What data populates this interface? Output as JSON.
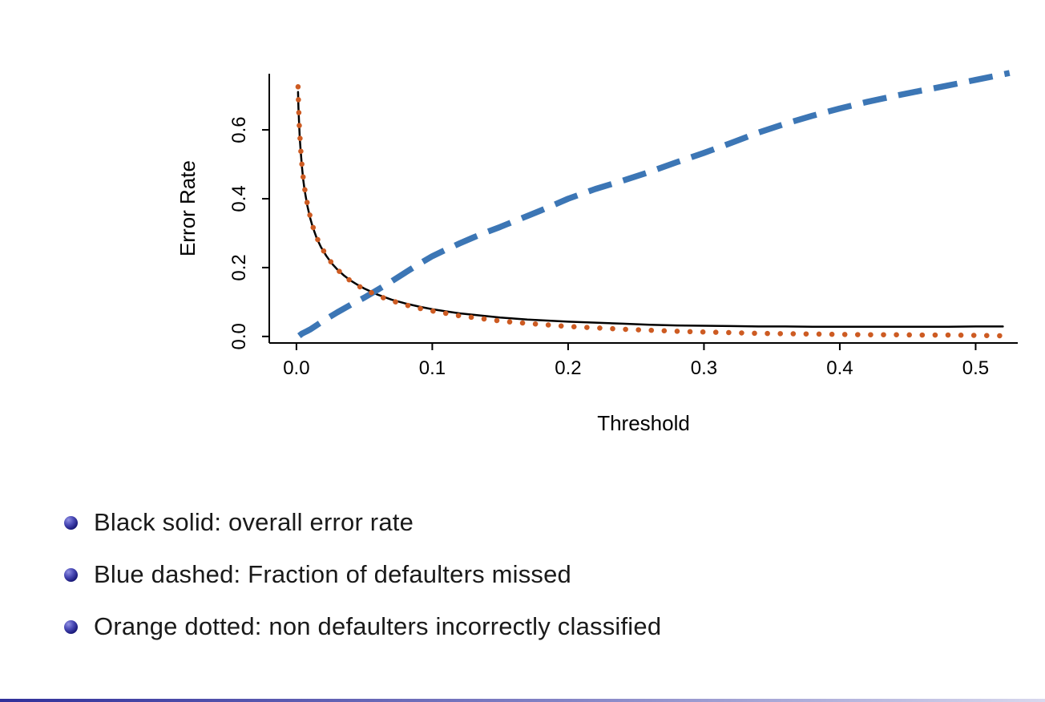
{
  "slide": {
    "background": "#ffffff"
  },
  "chart_data": {
    "type": "line",
    "title": "",
    "xlabel": "Threshold",
    "ylabel": "Error Rate",
    "xlim": [
      -0.02,
      0.531
    ],
    "ylim": [
      -0.019,
      0.763
    ],
    "grid": false,
    "legend": "none",
    "x_ticks": {
      "values": [
        0,
        0.1,
        0.2,
        0.3,
        0.4,
        0.5
      ],
      "labels": [
        "0.0",
        "0.1",
        "0.2",
        "0.3",
        "0.4",
        "0.5"
      ]
    },
    "y_ticks": {
      "values": [
        0,
        0.2,
        0.4,
        0.6
      ],
      "labels": [
        "0.0",
        "0.2",
        "0.4",
        "0.6"
      ]
    },
    "series": [
      {
        "name": "overall-error-rate",
        "label": "Black solid: overall error rate",
        "style": "solid",
        "color": "#000000",
        "width": 2.5,
        "points": [
          [
            0.0012,
            0.71
          ],
          [
            0.0015,
            0.665
          ],
          [
            0.002,
            0.615
          ],
          [
            0.0025,
            0.575
          ],
          [
            0.003,
            0.545
          ],
          [
            0.004,
            0.495
          ],
          [
            0.005,
            0.455
          ],
          [
            0.006,
            0.425
          ],
          [
            0.008,
            0.38
          ],
          [
            0.01,
            0.345
          ],
          [
            0.012,
            0.318
          ],
          [
            0.015,
            0.285
          ],
          [
            0.018,
            0.26
          ],
          [
            0.022,
            0.234
          ],
          [
            0.026,
            0.212
          ],
          [
            0.03,
            0.195
          ],
          [
            0.035,
            0.177
          ],
          [
            0.04,
            0.162
          ],
          [
            0.045,
            0.15
          ],
          [
            0.05,
            0.139
          ],
          [
            0.06,
            0.121
          ],
          [
            0.07,
            0.107
          ],
          [
            0.08,
            0.096
          ],
          [
            0.09,
            0.087
          ],
          [
            0.1,
            0.079
          ],
          [
            0.11,
            0.073
          ],
          [
            0.12,
            0.067
          ],
          [
            0.13,
            0.063
          ],
          [
            0.14,
            0.059
          ],
          [
            0.15,
            0.055
          ],
          [
            0.16,
            0.052
          ],
          [
            0.17,
            0.049
          ],
          [
            0.18,
            0.047
          ],
          [
            0.19,
            0.045
          ],
          [
            0.2,
            0.043
          ],
          [
            0.22,
            0.04
          ],
          [
            0.24,
            0.037
          ],
          [
            0.26,
            0.034
          ],
          [
            0.28,
            0.032
          ],
          [
            0.3,
            0.031
          ],
          [
            0.32,
            0.03
          ],
          [
            0.34,
            0.029
          ],
          [
            0.36,
            0.029
          ],
          [
            0.38,
            0.028
          ],
          [
            0.4,
            0.028
          ],
          [
            0.42,
            0.028
          ],
          [
            0.44,
            0.028
          ],
          [
            0.46,
            0.028
          ],
          [
            0.48,
            0.028
          ],
          [
            0.5,
            0.029
          ],
          [
            0.52,
            0.029
          ]
        ]
      },
      {
        "name": "fraction-defaulters-missed",
        "label": "Blue dashed: Fraction of defaulters missed",
        "style": "dashed",
        "color": "#3c76b5",
        "width": 7.5,
        "points": [
          [
            0.002,
            0.002
          ],
          [
            0.004,
            0.008
          ],
          [
            0.006,
            0.012
          ],
          [
            0.008,
            0.016
          ],
          [
            0.01,
            0.02
          ],
          [
            0.015,
            0.033
          ],
          [
            0.02,
            0.046
          ],
          [
            0.025,
            0.058
          ],
          [
            0.03,
            0.07
          ],
          [
            0.04,
            0.092
          ],
          [
            0.05,
            0.113
          ],
          [
            0.06,
            0.136
          ],
          [
            0.07,
            0.16
          ],
          [
            0.08,
            0.185
          ],
          [
            0.09,
            0.21
          ],
          [
            0.1,
            0.233
          ],
          [
            0.11,
            0.252
          ],
          [
            0.12,
            0.27
          ],
          [
            0.13,
            0.287
          ],
          [
            0.14,
            0.303
          ],
          [
            0.15,
            0.318
          ],
          [
            0.16,
            0.334
          ],
          [
            0.17,
            0.35
          ],
          [
            0.18,
            0.366
          ],
          [
            0.19,
            0.383
          ],
          [
            0.2,
            0.4
          ],
          [
            0.22,
            0.428
          ],
          [
            0.24,
            0.452
          ],
          [
            0.26,
            0.478
          ],
          [
            0.28,
            0.506
          ],
          [
            0.3,
            0.533
          ],
          [
            0.32,
            0.562
          ],
          [
            0.34,
            0.592
          ],
          [
            0.36,
            0.618
          ],
          [
            0.38,
            0.641
          ],
          [
            0.4,
            0.662
          ],
          [
            0.42,
            0.681
          ],
          [
            0.44,
            0.698
          ],
          [
            0.46,
            0.714
          ],
          [
            0.48,
            0.729
          ],
          [
            0.5,
            0.745
          ],
          [
            0.515,
            0.757
          ],
          [
            0.525,
            0.765
          ]
        ]
      },
      {
        "name": "non-defaulters-incorrectly-classified",
        "label": "Orange dotted: non defaulters incorrectly classified",
        "style": "dotted",
        "color": "#cd5b22",
        "width": 6.5,
        "points": [
          [
            0.0012,
            0.725
          ],
          [
            0.002,
            0.62
          ],
          [
            0.003,
            0.55
          ],
          [
            0.004,
            0.5
          ],
          [
            0.005,
            0.46
          ],
          [
            0.006,
            0.43
          ],
          [
            0.008,
            0.385
          ],
          [
            0.01,
            0.35
          ],
          [
            0.012,
            0.32
          ],
          [
            0.015,
            0.287
          ],
          [
            0.018,
            0.262
          ],
          [
            0.022,
            0.235
          ],
          [
            0.026,
            0.213
          ],
          [
            0.03,
            0.195
          ],
          [
            0.035,
            0.176
          ],
          [
            0.04,
            0.161
          ],
          [
            0.045,
            0.148
          ],
          [
            0.05,
            0.137
          ],
          [
            0.06,
            0.118
          ],
          [
            0.07,
            0.104
          ],
          [
            0.08,
            0.092
          ],
          [
            0.09,
            0.082
          ],
          [
            0.1,
            0.074
          ],
          [
            0.11,
            0.067
          ],
          [
            0.12,
            0.06
          ],
          [
            0.13,
            0.055
          ],
          [
            0.14,
            0.05
          ],
          [
            0.15,
            0.045
          ],
          [
            0.16,
            0.041
          ],
          [
            0.17,
            0.038
          ],
          [
            0.18,
            0.035
          ],
          [
            0.19,
            0.032
          ],
          [
            0.2,
            0.029
          ],
          [
            0.22,
            0.025
          ],
          [
            0.24,
            0.021
          ],
          [
            0.26,
            0.018
          ],
          [
            0.28,
            0.015
          ],
          [
            0.3,
            0.013
          ],
          [
            0.32,
            0.011
          ],
          [
            0.34,
            0.009
          ],
          [
            0.36,
            0.008
          ],
          [
            0.38,
            0.007
          ],
          [
            0.4,
            0.006
          ],
          [
            0.42,
            0.005
          ],
          [
            0.44,
            0.005
          ],
          [
            0.46,
            0.004
          ],
          [
            0.48,
            0.004
          ],
          [
            0.5,
            0.003
          ],
          [
            0.52,
            0.002
          ]
        ]
      }
    ]
  },
  "bullets": [
    {
      "text": "Black solid: overall error rate"
    },
    {
      "text": "Blue dashed: Fraction of defaulters missed"
    },
    {
      "text": "Orange dotted: non defaulters incorrectly classified"
    }
  ],
  "colors": {
    "blue": "#3c76b5",
    "orange": "#cd5b22",
    "black": "#000000",
    "bullet_ball": "#1b1b7c",
    "text": "#1a1a1a",
    "footer_bar": "#30309a"
  }
}
